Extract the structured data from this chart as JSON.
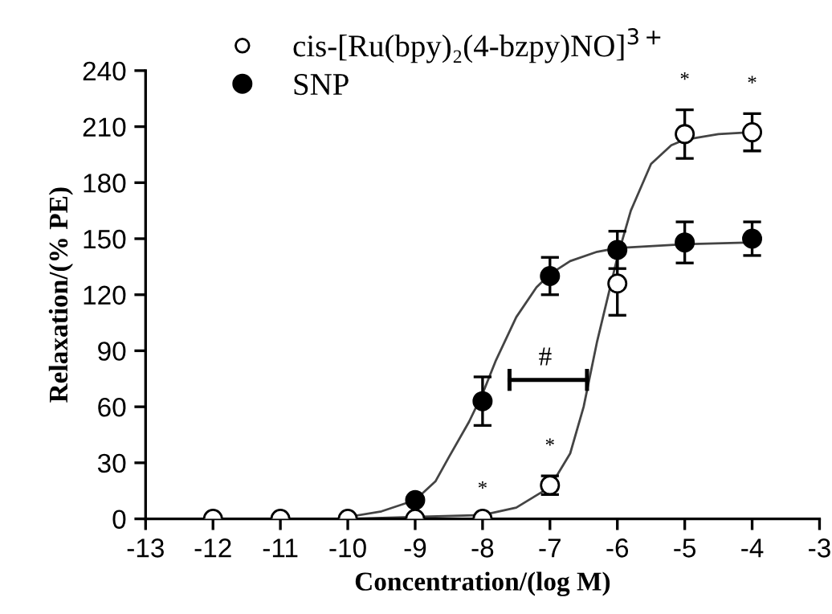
{
  "chart_data": {
    "type": "scatter",
    "xlabel": "Concentration/(log M)",
    "ylabel": "Relaxation/(% PE)",
    "xlim": [
      -13,
      -3
    ],
    "xticks": [
      -13,
      -12,
      -11,
      -10,
      -9,
      -8,
      -7,
      -6,
      -5,
      -4,
      -3
    ],
    "ylim": [
      0,
      240
    ],
    "yticks": [
      0,
      30,
      60,
      90,
      120,
      150,
      180,
      210,
      240
    ],
    "grid": false,
    "legend": "top left",
    "marker": "circle",
    "series": [
      {
        "name": "cis-[Ru(bpy)₂(4-bzpy)NO]$^{3+}$",
        "color": "#ffffff",
        "x": [
          -12,
          -11,
          -10,
          -9,
          -8,
          -7,
          -6,
          -5,
          -4
        ],
        "values": [
          0,
          0,
          0,
          0,
          0,
          18,
          126,
          206,
          207
        ],
        "errors": [
          null,
          null,
          null,
          null,
          null,
          5,
          17,
          13,
          10
        ]
      },
      {
        "name": "SNP",
        "color": "#000000",
        "x": [
          -9,
          -8,
          -7,
          -6,
          -5,
          -4
        ],
        "values": [
          10,
          63,
          130,
          144,
          148,
          150
        ],
        "errors": [
          null,
          13,
          10,
          10,
          11,
          9
        ]
      },
      {
        "type": "line",
        "color": "#444444",
        "marker": "none",
        "x": [
          -10,
          -9,
          -8,
          -7.5,
          -7,
          -6.7,
          -6.5,
          -6.3,
          -6.1,
          -6,
          -5.8,
          -5.5,
          -5.2,
          -5,
          -4.5,
          -4
        ],
        "values": [
          0,
          1,
          2,
          6,
          17,
          35,
          60,
          95,
          125,
          140,
          165,
          190,
          200,
          203,
          206,
          207
        ]
      },
      {
        "type": "line",
        "color": "#444444",
        "marker": "none",
        "x": [
          -10,
          -9.5,
          -9,
          -8.7,
          -8.5,
          -8.2,
          -8,
          -7.8,
          -7.5,
          -7.2,
          -7,
          -6.7,
          -6.3,
          -6,
          -5,
          -4
        ],
        "values": [
          1,
          4,
          10,
          20,
          33,
          52,
          67,
          85,
          108,
          124,
          131,
          138,
          143,
          145,
          147,
          148
        ]
      }
    ],
    "annotations": [
      {
        "text": "*",
        "x": -8,
        "y": 0
      },
      {
        "text": "*",
        "x": -7,
        "y": 18
      },
      {
        "text": "*",
        "x": -5,
        "y": 206
      },
      {
        "text": "*",
        "x": -4,
        "y": 207
      },
      "#"
    ]
  }
}
